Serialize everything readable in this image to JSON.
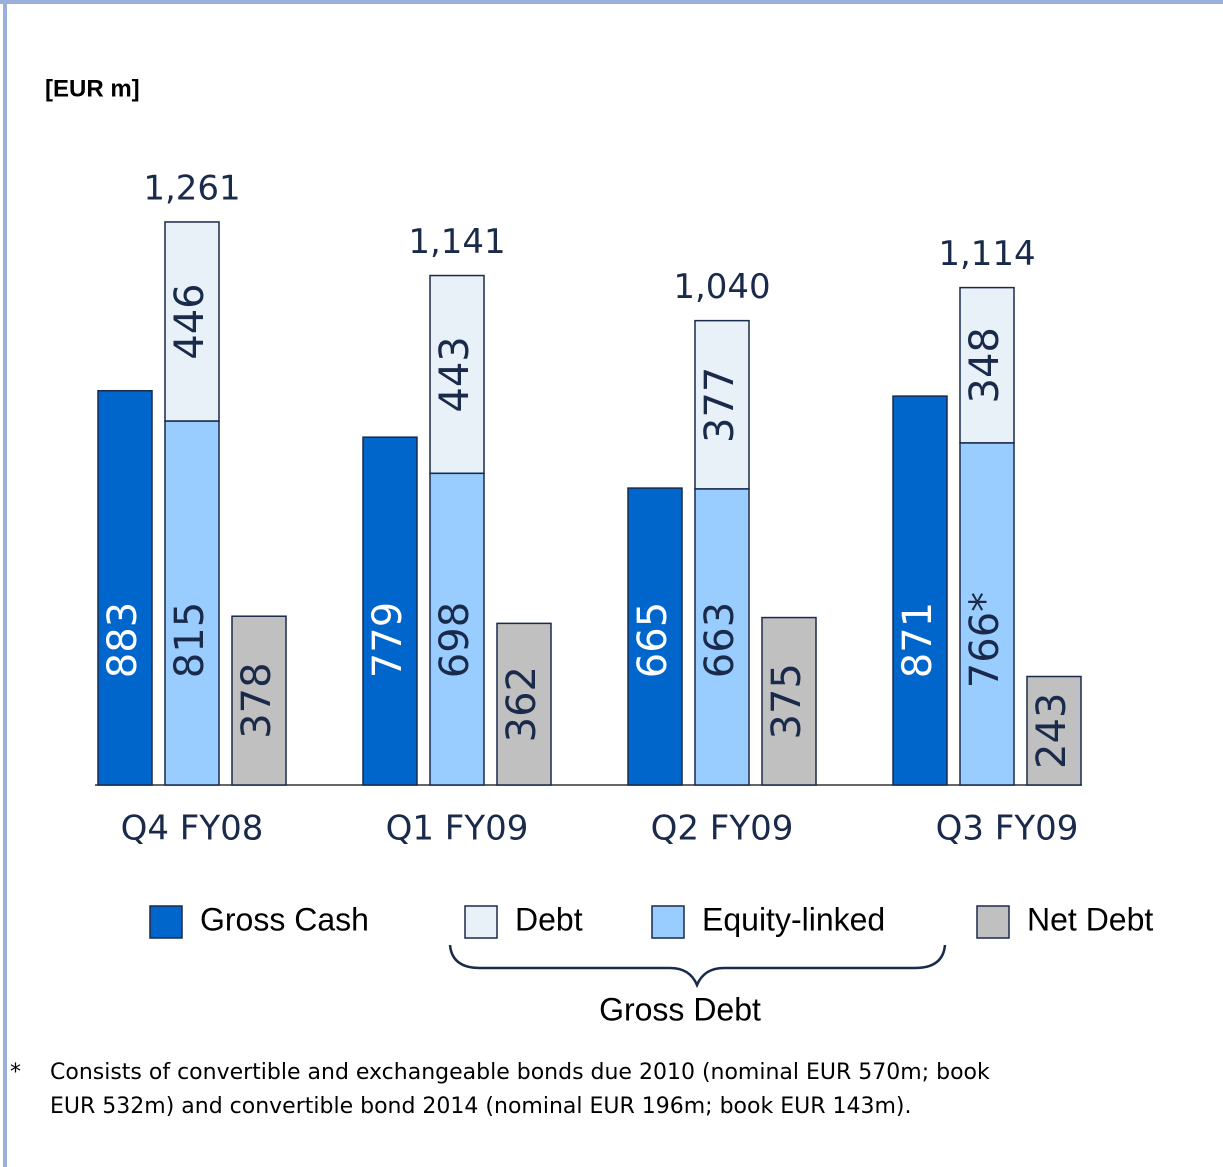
{
  "chart_data": {
    "type": "bar",
    "unit_label": "[EUR m]",
    "categories": [
      "Q4 FY08",
      "Q1 FY09",
      "Q2 FY09",
      "Q3 FY09"
    ],
    "series": [
      {
        "name": "Gross Cash",
        "color": "#0066cc",
        "values": [
          883,
          779,
          665,
          871
        ]
      },
      {
        "name": "Debt",
        "color": "#e8f0f8",
        "values": [
          446,
          443,
          377,
          348
        ]
      },
      {
        "name": "Equity-linked",
        "color": "#99ccff",
        "values": [
          815,
          698,
          663,
          766
        ],
        "value_labels": [
          "815",
          "698",
          "663",
          "766*"
        ]
      },
      {
        "name": "Net Debt",
        "color": "#c0c0c0",
        "values": [
          378,
          362,
          375,
          243
        ]
      }
    ],
    "totals": {
      "values": [
        1261,
        1141,
        1040,
        1114
      ],
      "value_labels": [
        "1,261",
        "1,141",
        "1,040",
        "1,114"
      ]
    },
    "brace_label": "Gross Debt",
    "footnote": {
      "marker": "*",
      "lines": [
        "Consists of convertible and exchangeable bonds due 2010 (nominal EUR 570m; book",
        "EUR 532m) and convertible bond 2014 (nominal EUR 196m; book EUR 143m)."
      ]
    }
  }
}
